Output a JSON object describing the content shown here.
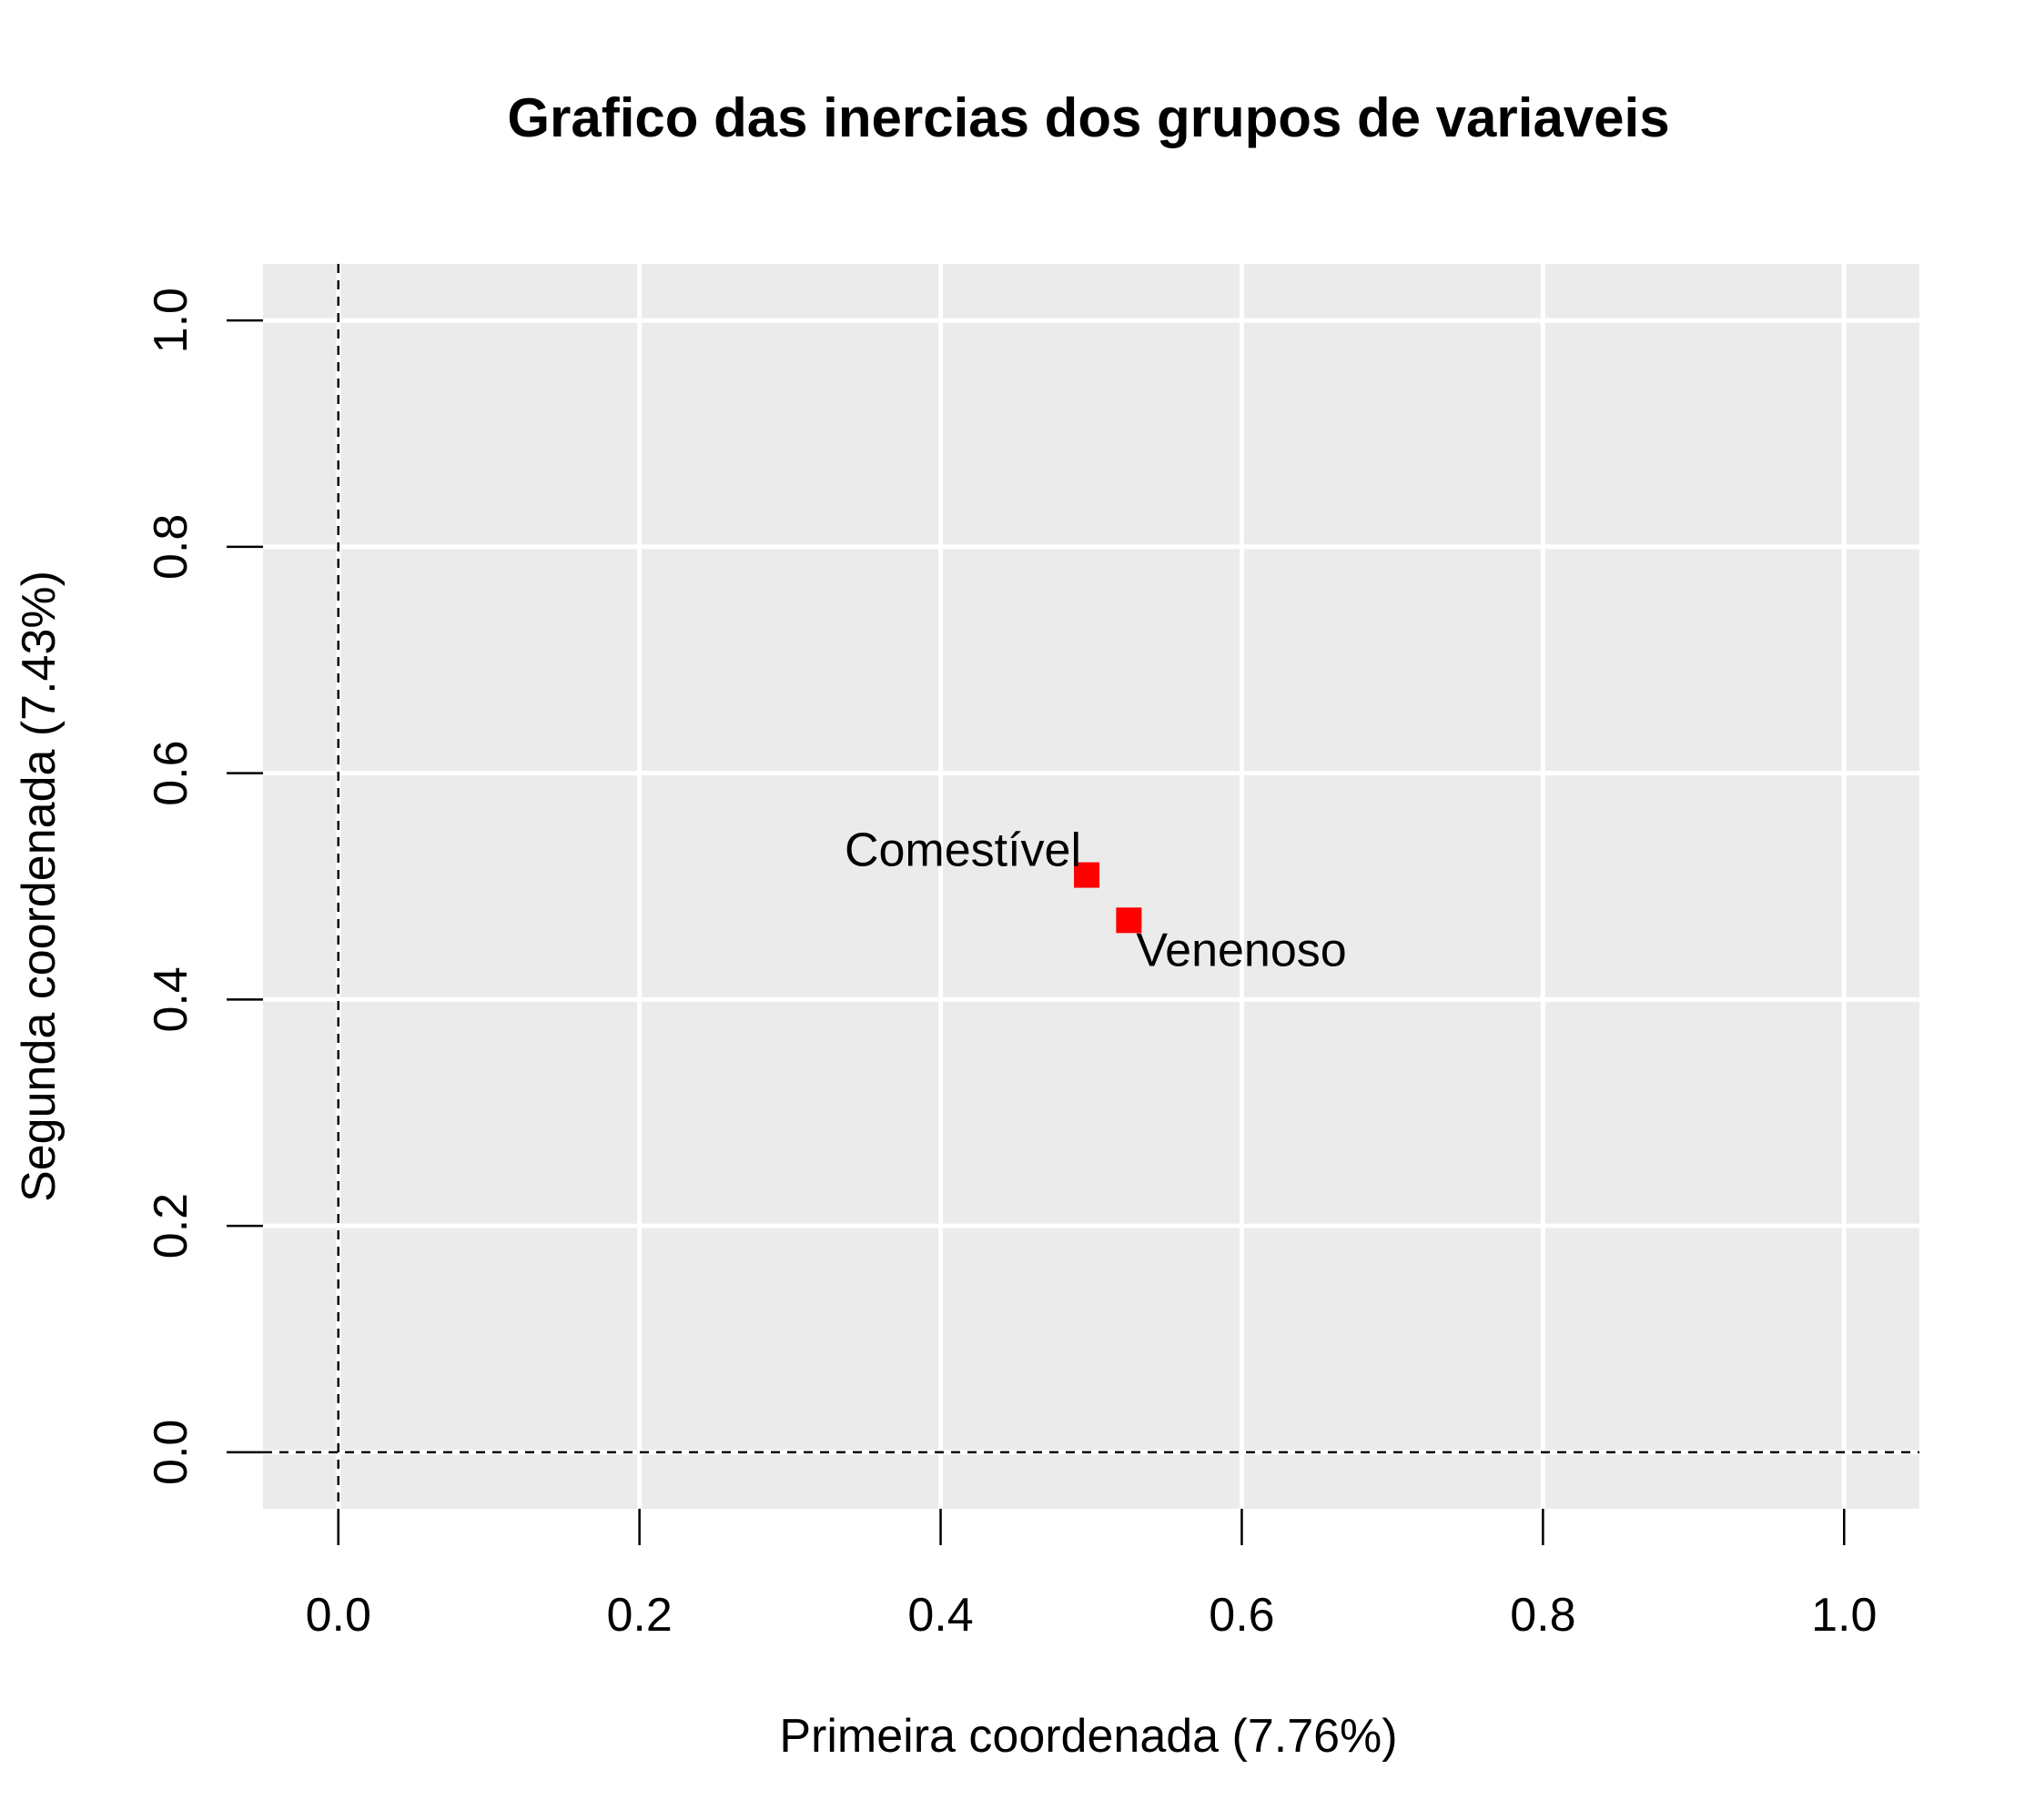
{
  "chart_data": {
    "type": "scatter",
    "title": "Grafico das inercias dos grupos de variaveis",
    "xlabel": "Primeira coordenada (7.76%)",
    "ylabel": "Segunda coordenada (7.43%)",
    "xlim": [
      -0.05,
      1.05
    ],
    "ylim": [
      -0.05,
      1.05
    ],
    "xticks": [
      0.0,
      0.2,
      0.4,
      0.6,
      0.8,
      1.0
    ],
    "yticks": [
      0.0,
      0.2,
      0.4,
      0.6,
      0.8,
      1.0
    ],
    "xtick_labels": [
      "0.0",
      "0.2",
      "0.4",
      "0.6",
      "0.8",
      "1.0"
    ],
    "ytick_labels": [
      "0.0",
      "0.2",
      "0.4",
      "0.6",
      "0.8",
      "1.0"
    ],
    "grid": true,
    "reference_lines": {
      "x": 0,
      "y": 0,
      "style": "dashed"
    },
    "colors": {
      "panel": "#ebebeb",
      "grid": "#ffffff",
      "point": "#ff0000"
    },
    "points": [
      {
        "label": "Comestível",
        "x": 0.497,
        "y": 0.51,
        "label_position": "left"
      },
      {
        "label": "Venenoso",
        "x": 0.525,
        "y": 0.47,
        "label_position": "bottom-right"
      }
    ]
  }
}
